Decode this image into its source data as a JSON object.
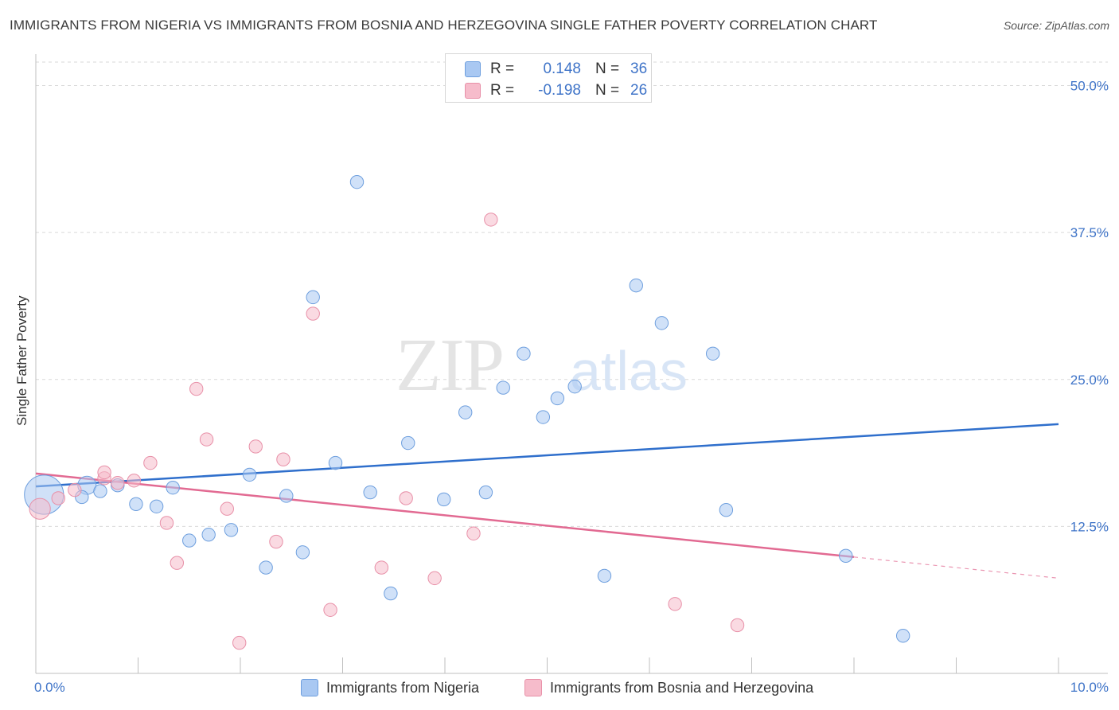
{
  "title": "IMMIGRANTS FROM NIGERIA VS IMMIGRANTS FROM BOSNIA AND HERZEGOVINA SINGLE FATHER POVERTY CORRELATION CHART",
  "source": "Source: ZipAtlas.com",
  "watermark": {
    "zip": "ZIP",
    "atlas": "atlas"
  },
  "legend_top": {
    "rows": [
      {
        "r_label": "R =",
        "r_value": "0.148",
        "n_label": "N =",
        "n_value": "36",
        "color": "#a9c8f2"
      },
      {
        "r_label": "R =",
        "r_value": "-0.198",
        "n_label": "N =",
        "n_value": "26",
        "color": "#f6bccb"
      }
    ]
  },
  "legend_bottom": [
    {
      "label": "Immigrants from Nigeria",
      "color": "#a9c8f2"
    },
    {
      "label": "Immigrants from Bosnia and Herzegovina",
      "color": "#f6bccb"
    }
  ],
  "chart_data": {
    "type": "scatter",
    "title": "IMMIGRANTS FROM NIGERIA VS IMMIGRANTS FROM BOSNIA AND HERZEGOVINA SINGLE FATHER POVERTY CORRELATION CHART",
    "xlabel": "",
    "ylabel": "Single Father Poverty",
    "xlim": [
      0,
      10
    ],
    "ylim": [
      0,
      52
    ],
    "x_ticks": [
      {
        "value": 0,
        "label": "0.0%"
      },
      {
        "value": 10,
        "label": "10.0%"
      }
    ],
    "y_ticks": [
      {
        "value": 12.5,
        "label": "12.5%"
      },
      {
        "value": 25,
        "label": "25.0%"
      },
      {
        "value": 37.5,
        "label": "37.5%"
      },
      {
        "value": 50,
        "label": "50.0%"
      }
    ],
    "grid": true,
    "series": [
      {
        "name": "Immigrants from Nigeria",
        "color": "#a9c8f2",
        "stroke": "#6e9fde",
        "trend_color": "#2f6fcc",
        "trend": {
          "x0": 0,
          "y0": 15.9,
          "x1": 10,
          "y1": 21.2
        },
        "points": [
          [
            0.08,
            15.2,
            30
          ],
          [
            0.5,
            16.0,
            14
          ],
          [
            0.45,
            15.0,
            10
          ],
          [
            0.63,
            15.5,
            10
          ],
          [
            0.8,
            16.0,
            10
          ],
          [
            0.98,
            14.4,
            10
          ],
          [
            1.18,
            14.2,
            10
          ],
          [
            1.34,
            15.8,
            10
          ],
          [
            1.5,
            11.3,
            10
          ],
          [
            1.69,
            11.8,
            10
          ],
          [
            1.91,
            12.2,
            10
          ],
          [
            2.09,
            16.9,
            10
          ],
          [
            2.25,
            9.0,
            10
          ],
          [
            2.45,
            15.1,
            10
          ],
          [
            2.61,
            10.3,
            10
          ],
          [
            2.71,
            32.0,
            10
          ],
          [
            2.93,
            17.9,
            10
          ],
          [
            3.14,
            41.8,
            10
          ],
          [
            3.27,
            15.4,
            10
          ],
          [
            3.47,
            6.8,
            10
          ],
          [
            3.64,
            19.6,
            10
          ],
          [
            3.99,
            14.8,
            10
          ],
          [
            4.2,
            22.2,
            10
          ],
          [
            4.4,
            15.4,
            10
          ],
          [
            4.57,
            24.3,
            10
          ],
          [
            4.77,
            27.2,
            10
          ],
          [
            4.96,
            21.8,
            10
          ],
          [
            5.1,
            23.4,
            10
          ],
          [
            5.27,
            24.4,
            10
          ],
          [
            5.56,
            8.3,
            10
          ],
          [
            5.87,
            33.0,
            10
          ],
          [
            6.12,
            29.8,
            10
          ],
          [
            6.62,
            27.2,
            10
          ],
          [
            6.75,
            13.9,
            10
          ],
          [
            7.92,
            10.0,
            10
          ],
          [
            8.48,
            3.2,
            10
          ]
        ]
      },
      {
        "name": "Immigrants from Bosnia and Herzegovina",
        "color": "#f6bccb",
        "stroke": "#e890a8",
        "trend_color": "#e26a92",
        "trend": {
          "x0": 0,
          "y0": 17.0,
          "x1": 8.0,
          "y1": 9.9
        },
        "trend_dashed_to": {
          "x": 10,
          "y": 8.1
        },
        "points": [
          [
            0.04,
            14.0,
            16
          ],
          [
            0.22,
            14.9,
            10
          ],
          [
            0.38,
            15.6,
            10
          ],
          [
            0.67,
            16.6,
            10
          ],
          [
            0.8,
            16.2,
            10
          ],
          [
            0.96,
            16.4,
            10
          ],
          [
            1.12,
            17.9,
            10
          ],
          [
            1.28,
            12.8,
            10
          ],
          [
            1.38,
            9.4,
            10
          ],
          [
            1.57,
            24.2,
            10
          ],
          [
            1.67,
            19.9,
            10
          ],
          [
            1.87,
            14.0,
            10
          ],
          [
            1.99,
            2.6,
            10
          ],
          [
            2.15,
            19.3,
            10
          ],
          [
            2.35,
            11.2,
            10
          ],
          [
            2.42,
            18.2,
            10
          ],
          [
            2.71,
            30.6,
            10
          ],
          [
            2.88,
            5.4,
            10
          ],
          [
            3.38,
            9.0,
            10
          ],
          [
            3.62,
            14.9,
            10
          ],
          [
            3.9,
            8.1,
            10
          ],
          [
            4.28,
            11.9,
            10
          ],
          [
            4.45,
            38.6,
            10
          ],
          [
            6.25,
            5.9,
            10
          ],
          [
            6.86,
            4.1,
            10
          ],
          [
            0.67,
            17.1,
            10
          ]
        ]
      }
    ]
  }
}
